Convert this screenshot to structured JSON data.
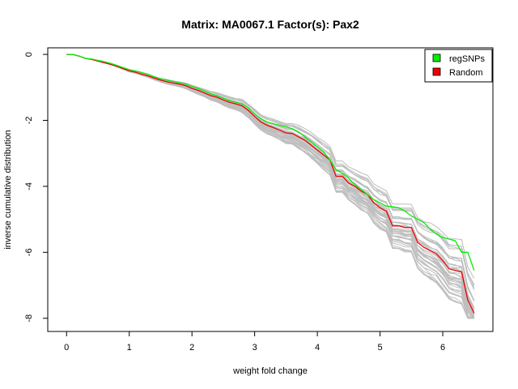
{
  "chart_data": {
    "type": "line",
    "title": "Matrix: MA0067.1 Factor(s): Pax2",
    "xlabel": "weight fold change",
    "ylabel": "inverse cumulative distribution",
    "xlim": [
      -0.3,
      6.8
    ],
    "ylim": [
      -8.4,
      0.2
    ],
    "x_ticks": [
      0,
      1,
      2,
      3,
      4,
      5,
      6
    ],
    "y_ticks": [
      0,
      -2,
      -4,
      -6,
      -8
    ],
    "grid": false,
    "legend_position": "top-right",
    "legend": [
      {
        "label": "regSNPs",
        "color": "#00ee00"
      },
      {
        "label": "Random",
        "color": "#ee0000"
      }
    ],
    "series": [
      {
        "name": "regSNPs",
        "color": "#00ee00",
        "x": [
          0,
          0.1,
          0.2,
          0.3,
          0.4,
          0.5,
          0.6,
          0.7,
          0.8,
          0.9,
          1.0,
          1.1,
          1.2,
          1.3,
          1.4,
          1.5,
          1.6,
          1.7,
          1.8,
          1.9,
          2.0,
          2.1,
          2.2,
          2.3,
          2.4,
          2.5,
          2.6,
          2.7,
          2.8,
          2.9,
          3.0,
          3.1,
          3.2,
          3.3,
          3.4,
          3.5,
          3.6,
          3.7,
          3.8,
          3.9,
          4.0,
          4.1,
          4.2,
          4.3,
          4.4,
          4.5,
          4.6,
          4.7,
          4.8,
          4.9,
          5.0,
          5.1,
          5.2,
          5.3,
          5.4,
          5.5,
          5.6,
          5.7,
          5.8,
          5.9,
          6.0,
          6.1,
          6.2,
          6.3,
          6.4,
          6.5
        ],
        "y": [
          0,
          0,
          -0.05,
          -0.12,
          -0.14,
          -0.18,
          -0.22,
          -0.27,
          -0.33,
          -0.4,
          -0.46,
          -0.5,
          -0.55,
          -0.6,
          -0.68,
          -0.74,
          -0.78,
          -0.82,
          -0.86,
          -0.9,
          -0.97,
          -1.03,
          -1.11,
          -1.19,
          -1.25,
          -1.33,
          -1.4,
          -1.45,
          -1.5,
          -1.62,
          -1.8,
          -1.95,
          -2.05,
          -2.1,
          -2.15,
          -2.2,
          -2.25,
          -2.35,
          -2.5,
          -2.65,
          -2.8,
          -2.95,
          -3.2,
          -3.5,
          -3.6,
          -3.75,
          -3.95,
          -4.1,
          -4.25,
          -4.4,
          -4.5,
          -4.6,
          -4.62,
          -4.65,
          -4.75,
          -4.9,
          -5.0,
          -5.1,
          -5.3,
          -5.45,
          -5.55,
          -5.6,
          -5.65,
          -6.0,
          -6.0,
          -6.55
        ]
      },
      {
        "name": "Random",
        "color": "#ee0000",
        "x": [
          0,
          0.1,
          0.2,
          0.3,
          0.4,
          0.5,
          0.6,
          0.7,
          0.8,
          0.9,
          1.0,
          1.1,
          1.2,
          1.3,
          1.4,
          1.5,
          1.6,
          1.7,
          1.8,
          1.9,
          2.0,
          2.1,
          2.2,
          2.3,
          2.4,
          2.5,
          2.6,
          2.7,
          2.8,
          2.9,
          3.0,
          3.1,
          3.2,
          3.3,
          3.4,
          3.5,
          3.6,
          3.7,
          3.8,
          3.9,
          4.0,
          4.1,
          4.2,
          4.3,
          4.4,
          4.5,
          4.6,
          4.7,
          4.8,
          4.9,
          5.0,
          5.1,
          5.2,
          5.3,
          5.4,
          5.5,
          5.6,
          5.7,
          5.8,
          5.9,
          6.0,
          6.1,
          6.2,
          6.3,
          6.4,
          6.5
        ],
        "y": [
          0,
          0,
          -0.05,
          -0.12,
          -0.15,
          -0.2,
          -0.25,
          -0.3,
          -0.36,
          -0.43,
          -0.5,
          -0.54,
          -0.6,
          -0.65,
          -0.72,
          -0.78,
          -0.83,
          -0.87,
          -0.9,
          -0.95,
          -1.03,
          -1.09,
          -1.17,
          -1.25,
          -1.3,
          -1.38,
          -1.45,
          -1.5,
          -1.56,
          -1.7,
          -1.88,
          -2.05,
          -2.15,
          -2.22,
          -2.3,
          -2.38,
          -2.4,
          -2.5,
          -2.6,
          -2.75,
          -2.9,
          -3.05,
          -3.2,
          -3.7,
          -3.7,
          -3.9,
          -4.0,
          -4.15,
          -4.25,
          -4.5,
          -4.65,
          -4.75,
          -5.2,
          -5.2,
          -5.25,
          -5.25,
          -5.7,
          -5.85,
          -5.95,
          -6.05,
          -6.25,
          -6.5,
          -6.55,
          -6.6,
          -7.45,
          -7.85
        ]
      }
    ]
  }
}
